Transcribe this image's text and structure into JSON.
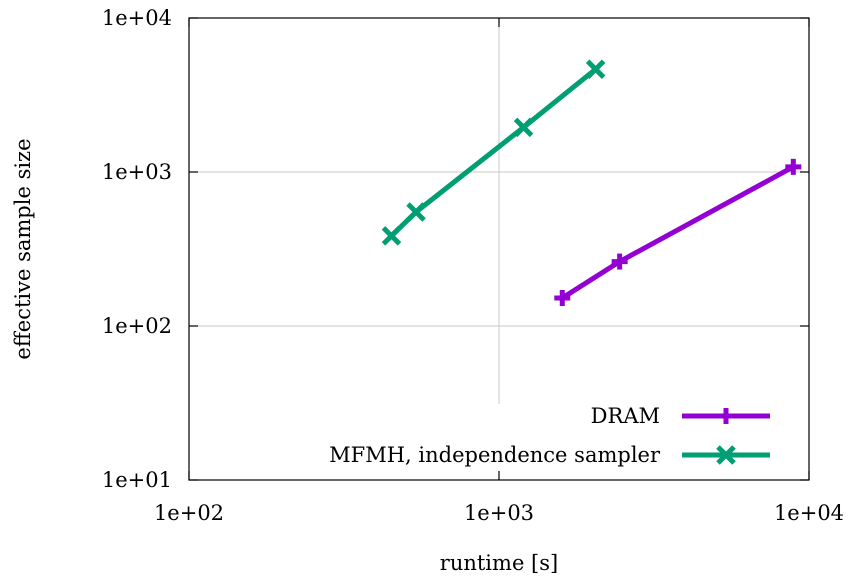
{
  "chart_data": {
    "type": "line",
    "xlabel": "runtime [s]",
    "ylabel": "effective sample size",
    "xscale": "log",
    "yscale": "log",
    "xlim": [
      100,
      10000
    ],
    "ylim": [
      10,
      10000
    ],
    "xticks": [
      100,
      1000,
      10000
    ],
    "xtick_labels": [
      "1e+02",
      "1e+03",
      "1e+04"
    ],
    "yticks": [
      10,
      100,
      1000,
      10000
    ],
    "ytick_labels": [
      "1e+01",
      "1e+02",
      "1e+03",
      "1e+04"
    ],
    "grid": true,
    "legend_position": "bottom-right",
    "series": [
      {
        "name": "DRAM",
        "color": "#9400d3",
        "marker": "plus",
        "x": [
          1600,
          2450,
          8900
        ],
        "y": [
          152,
          262,
          1080
        ]
      },
      {
        "name": "MFMH, independence sampler",
        "color": "#009e73",
        "marker": "cross",
        "x": [
          450,
          540,
          1200,
          2050
        ],
        "y": [
          385,
          550,
          1950,
          4650
        ]
      }
    ]
  }
}
